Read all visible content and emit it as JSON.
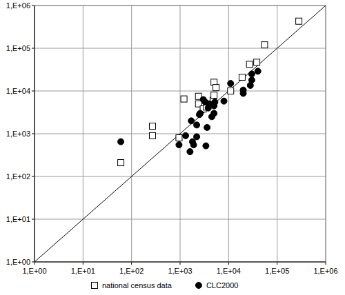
{
  "chart_data": {
    "type": "scatter",
    "log": true,
    "grid": true,
    "legend": "bottom",
    "xlim": [
      1,
      1000000
    ],
    "ylim": [
      1,
      1000000
    ],
    "xticks": [
      {
        "value": 1,
        "label": "1,E+00"
      },
      {
        "value": 10,
        "label": "1,E+01"
      },
      {
        "value": 100,
        "label": "1,E+02"
      },
      {
        "value": 1000,
        "label": "1,E+03"
      },
      {
        "value": 10000,
        "label": "1,E+04"
      },
      {
        "value": 100000,
        "label": "1,E+05"
      },
      {
        "value": 1000000,
        "label": "1,E+06"
      }
    ],
    "yticks": [
      {
        "value": 1,
        "label": "1,E+00"
      },
      {
        "value": 10,
        "label": "1,E+01"
      },
      {
        "value": 100,
        "label": "1,E+02"
      },
      {
        "value": 1000,
        "label": "1,E+03"
      },
      {
        "value": 10000,
        "label": "1,E+04"
      },
      {
        "value": 100000,
        "label": "1,E+05"
      },
      {
        "value": 1000000,
        "label": "1,E+06"
      }
    ],
    "series": [
      {
        "name": "national census data",
        "color": "#000000",
        "marker": "open-square",
        "x": [
          60,
          270,
          270,
          950,
          1200,
          2400,
          2400,
          3000,
          3500,
          4800,
          5000,
          5000,
          5500,
          11000,
          19000,
          27000,
          38000,
          55000,
          280000
        ],
        "values": [
          210,
          900,
          1500,
          800,
          6500,
          5000,
          7500,
          3800,
          4200,
          6000,
          16000,
          8000,
          12000,
          10000,
          21000,
          42000,
          47000,
          120000,
          430000
        ]
      },
      {
        "name": "CLC2000",
        "color": "#000000",
        "marker": "filled-circle",
        "x": [
          60,
          950,
          1300,
          1600,
          1700,
          1800,
          1900,
          2200,
          2200,
          2500,
          2600,
          3000,
          3300,
          3400,
          3600,
          3800,
          4000,
          4500,
          5000,
          5000,
          5200,
          8000,
          11000,
          20000,
          20000,
          28000,
          30000,
          30000,
          40000
        ],
        "values": [
          650,
          550,
          900,
          380,
          2000,
          650,
          550,
          850,
          1600,
          2800,
          3000,
          6300,
          5500,
          520,
          1400,
          4000,
          5000,
          2500,
          3000,
          4500,
          5500,
          5800,
          15000,
          10500,
          8800,
          13500,
          18000,
          25000,
          29000
        ]
      }
    ]
  }
}
